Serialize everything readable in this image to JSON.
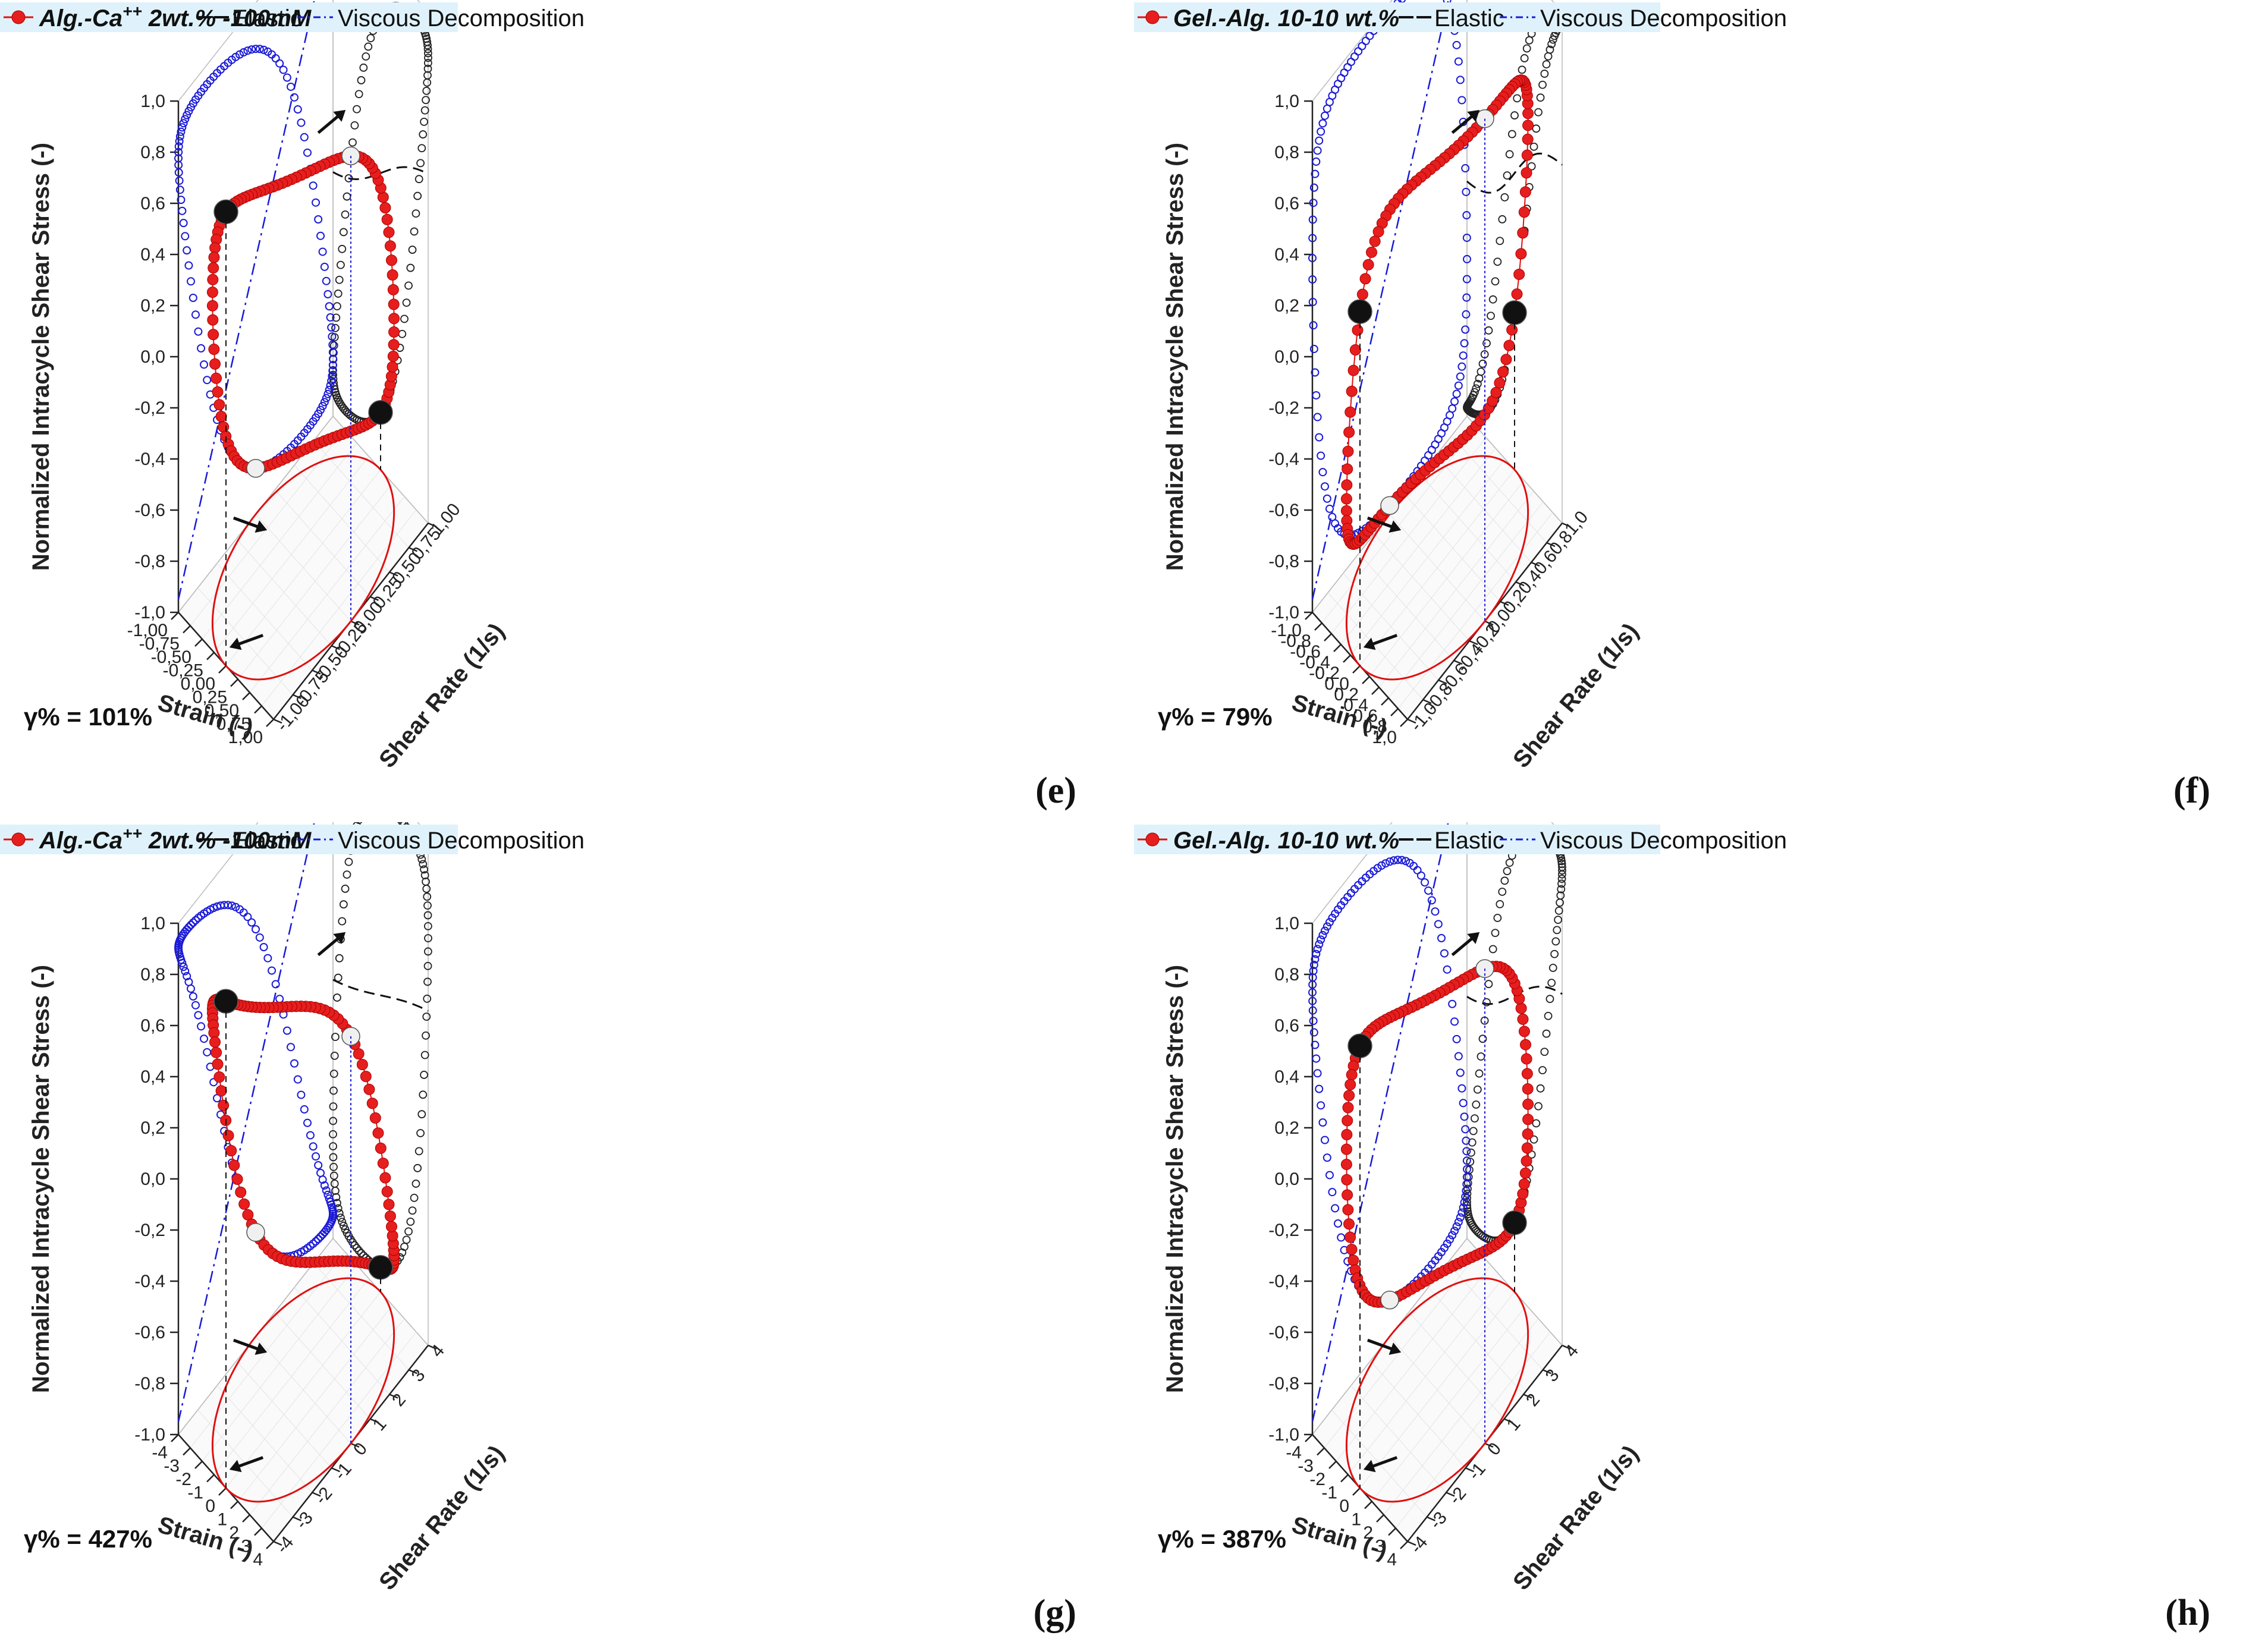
{
  "legend_common": {
    "elastic": "Elastic",
    "viscous": "Viscous Decomposition"
  },
  "chart_data": [
    {
      "type": "3d-lissajous",
      "panel_label": "(e)",
      "sample_label": "Alg.-Ca",
      "sample_sup": "++",
      "sample_suffix": " 2wt.% -100mM",
      "gamma_label": "γ% = 101%",
      "zlabel": "Normalized Intracycle Shear Stress (-)",
      "xlabel": "Strain (-)",
      "ylabel": "Shear Rate (1/s)",
      "zticks": [
        "1,0",
        "0,8",
        "0,6",
        "0,4",
        "0,2",
        "0,0",
        "-0,2",
        "-0,4",
        "-0,6",
        "-0,8",
        "-1,0"
      ],
      "xticks": [
        "-1,00",
        "-0,75",
        "-0,50",
        "-0,25",
        "0,00",
        "0,25",
        "0,50",
        "0,75",
        "1,00"
      ],
      "yticks": [
        "-1,00",
        "-0,75",
        "-0,50",
        "-0,25",
        "0,00",
        "0,25",
        "0,50",
        "0,75",
        "1,00"
      ],
      "xlim": [
        -1.0,
        1.0
      ],
      "ylim": [
        -1.0,
        1.0
      ],
      "zlim": [
        -1.0,
        1.0
      ],
      "series": [
        {
          "name": "Alg.-Ca++ 2wt.% -100mM",
          "color": "#e01010",
          "shape": "sigmoid-loop",
          "steepness": 0.5
        },
        {
          "name": "Elastic",
          "color": "#111111"
        },
        {
          "name": "Viscous Decomposition",
          "color": "#1a1ad8"
        }
      ]
    },
    {
      "type": "3d-lissajous",
      "panel_label": "(f)",
      "sample_label": "Gel.-Alg. 10-10 wt.%",
      "sample_sup": "",
      "sample_suffix": "",
      "gamma_label": "γ% = 79%",
      "zlabel": "Normalized Intracycle Shear Stress (-)",
      "xlabel": "Strain (-)",
      "ylabel": "Shear Rate (1/s)",
      "zticks": [
        "1,0",
        "0,8",
        "0,6",
        "0,4",
        "0,2",
        "0,0",
        "-0,2",
        "-0,4",
        "-0,6",
        "-0,8",
        "-1,0"
      ],
      "xticks": [
        "-1,0",
        "-0,8",
        "-0,6",
        "-0,4",
        "-0,2",
        "0,0",
        "0,2",
        "0,4",
        "0,6",
        "0,8",
        "1,0"
      ],
      "yticks": [
        "-1,0",
        "-0,8",
        "-0,6",
        "-0,4",
        "-0,2",
        "0,0",
        "0,2",
        "0,4",
        "0,6",
        "0,8",
        "1,0"
      ],
      "xlim": [
        -1.0,
        1.0
      ],
      "ylim": [
        -1.0,
        1.0
      ],
      "zlim": [
        -1.0,
        1.0
      ],
      "series": [
        {
          "name": "Gel.-Alg. 10-10 wt.%",
          "color": "#e01010",
          "shape": "ellipse-loop",
          "steepness": 0.2
        },
        {
          "name": "Elastic",
          "color": "#111111"
        },
        {
          "name": "Viscous Decomposition",
          "color": "#1a1ad8"
        }
      ]
    },
    {
      "type": "3d-lissajous",
      "panel_label": "(g)",
      "sample_label": "Alg.-Ca",
      "sample_sup": "++",
      "sample_suffix": " 2wt.% -100mM",
      "gamma_label": "γ% = 427%",
      "zlabel": "Normalized Intracycle Shear Stress (-)",
      "xlabel": "Strain (-)",
      "ylabel": "Shear Rate (1/s)",
      "zticks": [
        "1,0",
        "0,8",
        "0,6",
        "0,4",
        "0,2",
        "0,0",
        "-0,2",
        "-0,4",
        "-0,6",
        "-0,8",
        "-1,0"
      ],
      "xticks": [
        "-4",
        "-3",
        "-2",
        "-1",
        "0",
        "1",
        "2",
        "3",
        "4"
      ],
      "yticks": [
        "-4",
        "-3",
        "-2",
        "-1",
        "0",
        "1",
        "2",
        "3",
        "4"
      ],
      "xlim": [
        -4,
        4
      ],
      "ylim": [
        -4,
        4
      ],
      "zlim": [
        -1.0,
        1.0
      ],
      "series": [
        {
          "name": "Alg.-Ca++ 2wt.% -100mM",
          "color": "#e01010",
          "shape": "sigmoid-loop",
          "steepness": 0.7
        },
        {
          "name": "Elastic",
          "color": "#111111"
        },
        {
          "name": "Viscous Decomposition",
          "color": "#1a1ad8"
        }
      ]
    },
    {
      "type": "3d-lissajous",
      "panel_label": "(h)",
      "sample_label": "Gel.-Alg. 10-10 wt.%",
      "sample_sup": "",
      "sample_suffix": "",
      "gamma_label": "γ% = 387%",
      "zlabel": "Normalized Intracycle Shear Stress (-)",
      "xlabel": "Strain (-)",
      "ylabel": "Shear Rate (1/s)",
      "zticks": [
        "1,0",
        "0,8",
        "0,6",
        "0,4",
        "0,2",
        "0,0",
        "-0,2",
        "-0,4",
        "-0,6",
        "-0,8",
        "-1,0"
      ],
      "xticks": [
        "-4",
        "-3",
        "-2",
        "-1",
        "0",
        "1",
        "2",
        "3",
        "4"
      ],
      "yticks": [
        "-4",
        "-3",
        "-2",
        "-1",
        "0",
        "1",
        "2",
        "3",
        "4"
      ],
      "xlim": [
        -4,
        4
      ],
      "ylim": [
        -4,
        4
      ],
      "zlim": [
        -1.0,
        1.0
      ],
      "series": [
        {
          "name": "Gel.-Alg. 10-10 wt.%",
          "color": "#e01010",
          "shape": "sigmoid-loop",
          "steepness": 0.45
        },
        {
          "name": "Elastic",
          "color": "#111111"
        },
        {
          "name": "Viscous Decomposition",
          "color": "#1a1ad8"
        }
      ]
    }
  ]
}
